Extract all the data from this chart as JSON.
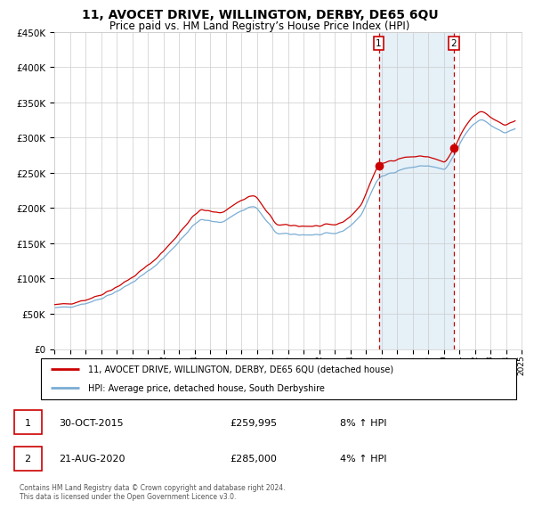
{
  "title": "11, AVOCET DRIVE, WILLINGTON, DERBY, DE65 6QU",
  "subtitle": "Price paid vs. HM Land Registry’s House Price Index (HPI)",
  "title_fontsize": 10,
  "subtitle_fontsize": 8.5,
  "ylim": [
    0,
    450000
  ],
  "yticks": [
    0,
    50000,
    100000,
    150000,
    200000,
    250000,
    300000,
    350000,
    400000,
    450000
  ],
  "ytick_labels": [
    "£0",
    "£50K",
    "£100K",
    "£150K",
    "£200K",
    "£250K",
    "£300K",
    "£350K",
    "£400K",
    "£450K"
  ],
  "xticks": [
    1995,
    1996,
    1997,
    1998,
    1999,
    2000,
    2001,
    2002,
    2003,
    2004,
    2005,
    2006,
    2007,
    2008,
    2009,
    2010,
    2011,
    2012,
    2013,
    2014,
    2015,
    2016,
    2017,
    2018,
    2019,
    2020,
    2021,
    2022,
    2023,
    2024,
    2025
  ],
  "background_color": "#ffffff",
  "plot_bg_color": "#ffffff",
  "shade_color": "#daeaf5",
  "grid_color": "#cccccc",
  "red_line_color": "#cc0000",
  "blue_line_color": "#7aadd4",
  "marker1_x": 2015.83,
  "marker2_x": 2020.64,
  "marker1_price": 259995,
  "marker2_price": 285000,
  "marker1_date": "30-OCT-2015",
  "marker2_date": "21-AUG-2020",
  "marker1_hpi_text": "8% ↑ HPI",
  "marker2_hpi_text": "4% ↑ HPI",
  "legend_label_red": "11, AVOCET DRIVE, WILLINGTON, DERBY, DE65 6QU (detached house)",
  "legend_label_blue": "HPI: Average price, detached house, South Derbyshire",
  "footer": "Contains HM Land Registry data © Crown copyright and database right 2024.\nThis data is licensed under the Open Government Licence v3.0."
}
